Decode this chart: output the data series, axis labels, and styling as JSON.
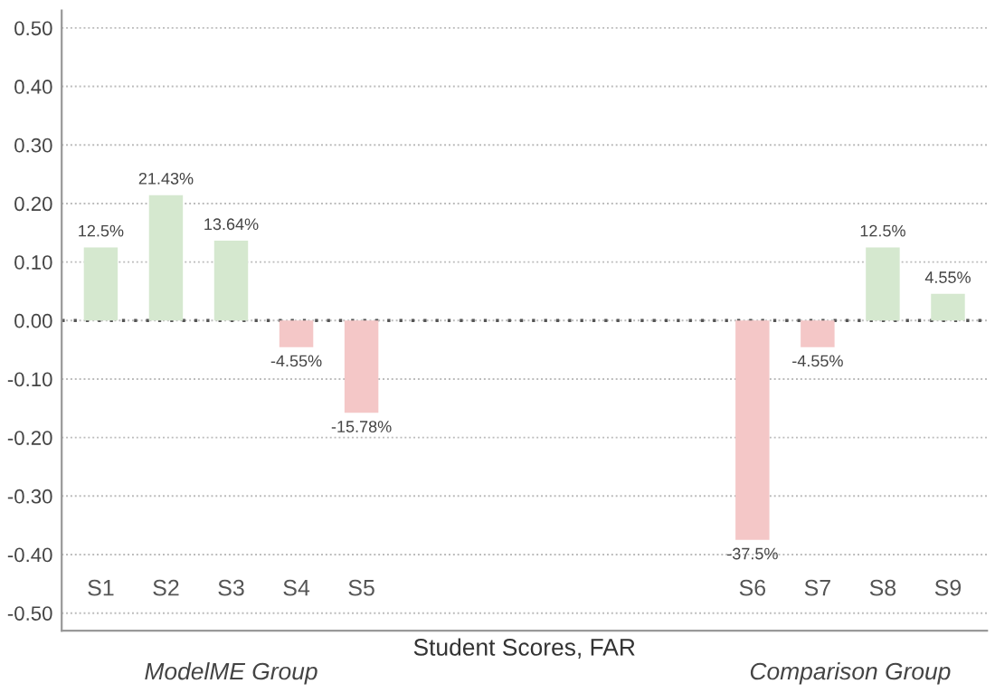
{
  "chart_data": {
    "type": "bar",
    "xlabel": "Student Scores, FAR",
    "categories": [
      "S1",
      "S2",
      "S3",
      "S4",
      "S5",
      null,
      null,
      null,
      null,
      null,
      "S6",
      "S7",
      "S8",
      "S9"
    ],
    "values": [
      0.125,
      0.2143,
      0.1364,
      -0.0455,
      -0.1578,
      null,
      null,
      null,
      null,
      null,
      -0.375,
      -0.0455,
      0.125,
      0.0455
    ],
    "colors": [
      "#d5e8cf",
      "#d5e8cf",
      "#d5e8cf",
      "#f4c7c7",
      "#f4c7c7",
      null,
      null,
      null,
      null,
      null,
      "#f4c7c7",
      "#f4c7c7",
      "#d5e8cf",
      "#d5e8cf"
    ],
    "value_labels": [
      "12.5%",
      "21.43%",
      "13.64%",
      "-4.55%",
      "-15.78%",
      null,
      null,
      null,
      null,
      null,
      "-37.5%",
      "-4.55%",
      "12.5%",
      "4.55%"
    ],
    "ylim": [
      -0.53,
      0.53
    ],
    "yticks": [
      {
        "value": -0.5,
        "label": "-0.50"
      },
      {
        "value": -0.4,
        "label": "-0.40"
      },
      {
        "value": -0.3,
        "label": "-0.30"
      },
      {
        "value": -0.2,
        "label": "-0.20"
      },
      {
        "value": -0.1,
        "label": "-0.10"
      },
      {
        "value": 0,
        "label": "0.00"
      },
      {
        "value": 0.1,
        "label": "0.10"
      },
      {
        "value": 0.2,
        "label": "0.20"
      },
      {
        "value": 0.3,
        "label": "0.30"
      },
      {
        "value": 0.4,
        "label": "0.40"
      },
      {
        "value": 0.5,
        "label": "0.50"
      }
    ],
    "grid": "y",
    "ref_lines": [
      {
        "axis": "y",
        "value": 0,
        "color": "#555555",
        "line_style": "dotted"
      }
    ],
    "annotations": [
      "ModelME Group",
      "Comparison Group"
    ],
    "tick_labels": "y"
  }
}
